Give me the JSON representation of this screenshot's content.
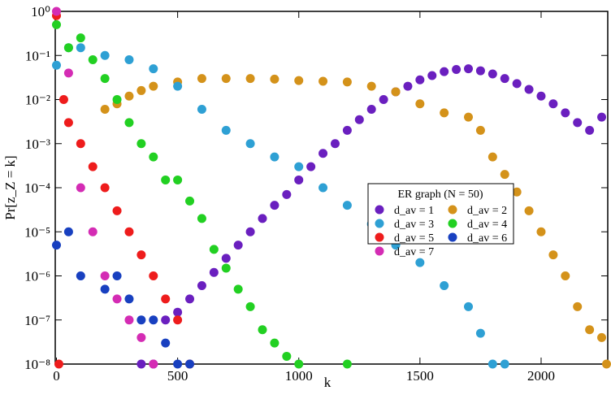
{
  "chart_data": {
    "type": "scatter",
    "log_y": true,
    "xlabel": "k",
    "ylabel": "Pr[z_Z = k]",
    "xlim": [
      -5,
      2275
    ],
    "ylim": [
      1e-08,
      1
    ],
    "xticks": [
      0,
      500,
      1000,
      1500,
      2000
    ],
    "yticks": [
      {
        "value": 1e-08,
        "label": "10⁻⁸"
      },
      {
        "value": 1e-07,
        "label": "10⁻⁷"
      },
      {
        "value": 1e-06,
        "label": "10⁻⁶"
      },
      {
        "value": 1e-05,
        "label": "10⁻⁵"
      },
      {
        "value": 0.0001,
        "label": "10⁻⁴"
      },
      {
        "value": 0.001,
        "label": "10⁻³"
      },
      {
        "value": 0.01,
        "label": "10⁻²"
      },
      {
        "value": 0.1,
        "label": "10⁻¹"
      },
      {
        "value": 1,
        "label": "10⁰"
      }
    ],
    "legend_title": "ER graph (N = 50)",
    "legend_position": "center-right",
    "series": [
      {
        "name": "d_av = 1",
        "color": "#6a1fbf",
        "x": [
          350,
          400,
          450,
          500,
          550,
          600,
          650,
          700,
          750,
          800,
          850,
          900,
          950,
          1000,
          1050,
          1100,
          1150,
          1200,
          1250,
          1300,
          1350,
          1400,
          1450,
          1500,
          1550,
          1600,
          1650,
          1700,
          1750,
          1800,
          1850,
          1900,
          1950,
          2000,
          2050,
          2100,
          2150,
          2200,
          2250
        ],
        "values": [
          1e-08,
          1e-08,
          1e-07,
          1.5e-07,
          3e-07,
          6e-07,
          1.2e-06,
          2.5e-06,
          5e-06,
          1e-05,
          2e-05,
          4e-05,
          7e-05,
          0.00015,
          0.0003,
          0.0006,
          0.001,
          0.002,
          0.0035,
          0.006,
          0.01,
          0.015,
          0.02,
          0.028,
          0.035,
          0.043,
          0.048,
          0.05,
          0.045,
          0.038,
          0.03,
          0.023,
          0.017,
          0.012,
          0.008,
          0.005,
          0.003,
          0.002,
          0.004
        ]
      },
      {
        "name": "d_av = 2",
        "color": "#d4921a",
        "x": [
          200,
          250,
          300,
          350,
          400,
          500,
          600,
          700,
          800,
          900,
          1000,
          1100,
          1200,
          1300,
          1400,
          1500,
          1600,
          1700,
          1750,
          1800,
          1850,
          1900,
          1950,
          2000,
          2050,
          2100,
          2150,
          2200,
          2250,
          2270
        ],
        "values": [
          0.006,
          0.008,
          0.012,
          0.016,
          0.02,
          0.025,
          0.03,
          0.03,
          0.03,
          0.029,
          0.027,
          0.026,
          0.025,
          0.02,
          0.015,
          0.008,
          0.005,
          0.004,
          0.002,
          0.0005,
          0.0002,
          8e-05,
          3e-05,
          1e-05,
          3e-06,
          1e-06,
          2e-07,
          6e-08,
          4e-08,
          1e-08
        ]
      },
      {
        "name": "d_av = 3",
        "color": "#2ea0d4",
        "x": [
          0,
          50,
          100,
          200,
          300,
          400,
          500,
          600,
          700,
          800,
          900,
          1000,
          1100,
          1200,
          1300,
          1400,
          1500,
          1600,
          1700,
          1750,
          1800,
          1850
        ],
        "values": [
          0.06,
          0.15,
          0.15,
          0.1,
          0.08,
          0.05,
          0.02,
          0.006,
          0.002,
          0.001,
          0.0005,
          0.0003,
          0.0001,
          4e-05,
          1.5e-05,
          5e-06,
          2e-06,
          6e-07,
          2e-07,
          5e-08,
          1e-08,
          1e-08
        ]
      },
      {
        "name": "d_av = 4",
        "color": "#22d022",
        "x": [
          0,
          50,
          100,
          150,
          200,
          250,
          300,
          350,
          400,
          450,
          500,
          550,
          600,
          650,
          700,
          750,
          800,
          850,
          900,
          950,
          1000,
          1200
        ],
        "values": [
          0.5,
          0.15,
          0.25,
          0.08,
          0.03,
          0.01,
          0.003,
          0.001,
          0.0005,
          0.00015,
          0.00015,
          5e-05,
          2e-05,
          4e-06,
          1.5e-06,
          5e-07,
          2e-07,
          6e-08,
          3e-08,
          1.5e-08,
          1e-08,
          1e-08
        ]
      },
      {
        "name": "d_av = 5",
        "color": "#ee1c1c",
        "x": [
          0,
          10,
          30,
          50,
          100,
          150,
          200,
          250,
          300,
          350,
          400,
          450,
          500,
          550
        ],
        "values": [
          0.8,
          1e-08,
          0.01,
          0.003,
          0.001,
          0.0003,
          0.0001,
          3e-05,
          1e-05,
          3e-06,
          1e-06,
          3e-07,
          1e-07,
          1e-08
        ]
      },
      {
        "name": "d_av = 6",
        "color": "#1840c0",
        "x": [
          0,
          50,
          100,
          200,
          250,
          300,
          350,
          400,
          450,
          500,
          550
        ],
        "values": [
          5e-06,
          1e-05,
          1e-06,
          5e-07,
          1e-06,
          3e-07,
          1e-07,
          1e-07,
          3e-08,
          1e-08,
          1e-08
        ]
      },
      {
        "name": "d_av = 7",
        "color": "#d42cb4",
        "x": [
          0,
          50,
          100,
          150,
          200,
          250,
          300,
          350,
          400
        ],
        "values": [
          1.0,
          0.04,
          0.0001,
          1e-05,
          1e-06,
          3e-07,
          1e-07,
          4e-08,
          1e-08
        ]
      }
    ]
  }
}
